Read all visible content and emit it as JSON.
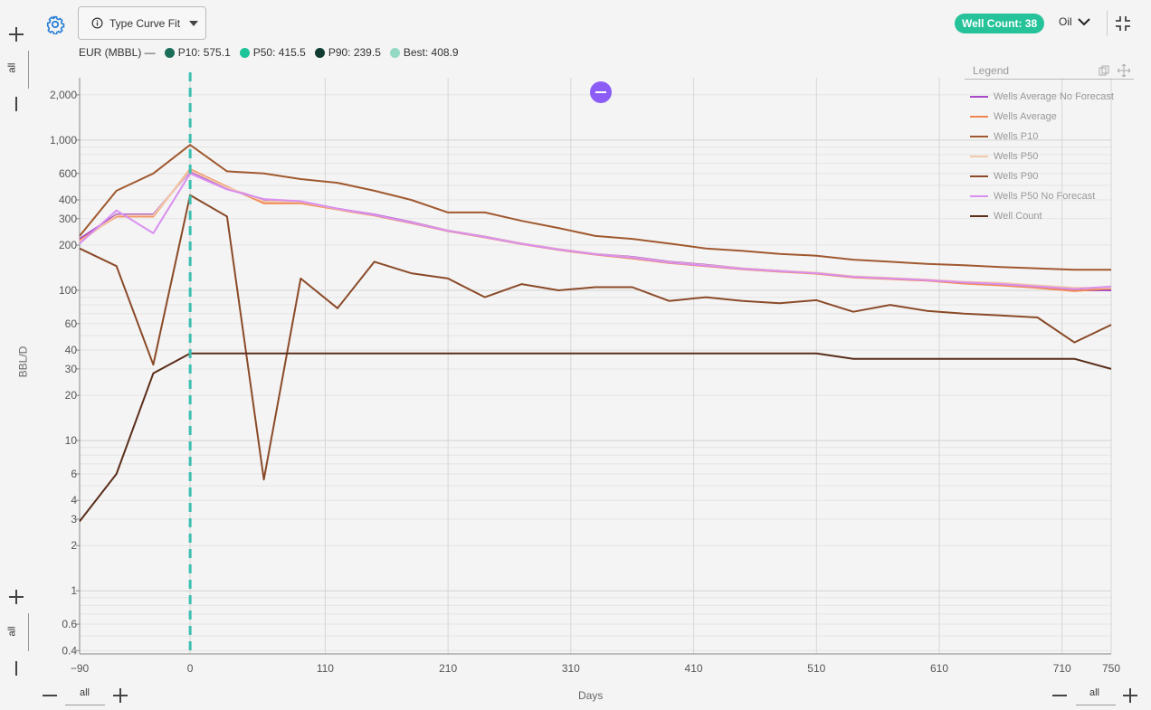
{
  "toolbar": {
    "type_curve_label": "Type Curve Fit",
    "info_icon": "info-icon",
    "settings_icon": "gear-icon",
    "well_count_label": "Well Count: 38",
    "product_label": "Oil",
    "collapse_icon": "collapse-icon"
  },
  "eur": {
    "label": "EUR (MBBL) —",
    "items": [
      {
        "label": "P10: 575.1",
        "color": "#1b6e5a"
      },
      {
        "label": "P50: 415.5",
        "color": "#1fc39a"
      },
      {
        "label": "P90: 239.5",
        "color": "#0f3b30"
      },
      {
        "label": "Best: 408.9",
        "color": "#93d9c3"
      }
    ]
  },
  "axis_controls": {
    "y_top_all": "all",
    "y_bottom_all": "all",
    "x_left_all": "all",
    "x_right_all": "all"
  },
  "chart_data": {
    "type": "line",
    "title": "",
    "xlabel": "Days",
    "ylabel": "BBL/D",
    "y_scale": "log",
    "xlim": [
      -90,
      750
    ],
    "ylim": [
      0.38,
      2600
    ],
    "x_ticks": [
      "−90",
      "0",
      "110",
      "210",
      "310",
      "410",
      "510",
      "610",
      "710",
      "750"
    ],
    "x_tick_values": [
      -90,
      0,
      110,
      210,
      310,
      410,
      510,
      610,
      710,
      750
    ],
    "y_ticks": [
      "0.4",
      "0.6",
      "1",
      "2",
      "3",
      "4",
      "6",
      "10",
      "20",
      "30",
      "40",
      "60",
      "100",
      "200",
      "300",
      "400",
      "600",
      "1,000",
      "2,000"
    ],
    "y_tick_values": [
      0.4,
      0.6,
      1,
      2,
      3,
      4,
      6,
      10,
      20,
      30,
      40,
      60,
      100,
      200,
      300,
      400,
      600,
      1000,
      2000
    ],
    "vertical_marker_x": 0,
    "legend_title": "Legend",
    "legend_position": "top-right",
    "grid": true,
    "x": [
      -90,
      -60,
      -30,
      0,
      30,
      60,
      90,
      120,
      150,
      180,
      210,
      240,
      270,
      300,
      330,
      360,
      390,
      420,
      450,
      480,
      510,
      540,
      570,
      600,
      630,
      660,
      690,
      720,
      750
    ],
    "series": [
      {
        "name": "Wells Average No Forecast",
        "color": "#a64ac9",
        "values": [
          220,
          320,
          320,
          620,
          480,
          400,
          390,
          350,
          320,
          285,
          250,
          228,
          205,
          188,
          175,
          167,
          155,
          148,
          140,
          135,
          130,
          123,
          120,
          117,
          112,
          109,
          105,
          100,
          100
        ]
      },
      {
        "name": "Wells Average",
        "color": "#f0874f",
        "values": [
          215,
          310,
          310,
          640,
          490,
          380,
          380,
          345,
          315,
          280,
          248,
          225,
          203,
          186,
          173,
          163,
          152,
          145,
          138,
          133,
          129,
          122,
          119,
          116,
          111,
          108,
          104,
          99,
          103
        ]
      },
      {
        "name": "Wells P10",
        "color": "#a0592f",
        "values": [
          230,
          460,
          600,
          930,
          620,
          600,
          550,
          520,
          460,
          400,
          330,
          330,
          290,
          260,
          230,
          220,
          205,
          190,
          183,
          175,
          170,
          160,
          155,
          150,
          147,
          143,
          140,
          137,
          137
        ]
      },
      {
        "name": "Wells P50",
        "color": "#f2c9ab",
        "values": [
          210,
          315,
          315,
          630,
          485,
          392,
          388,
          348,
          318,
          283,
          250,
          227,
          205,
          188,
          175,
          166,
          154,
          147,
          140,
          135,
          131,
          124,
          121,
          118,
          114,
          112,
          108,
          104,
          104
        ]
      },
      {
        "name": "Wells P90",
        "color": "#8a4a28",
        "values": [
          190,
          145,
          32,
          430,
          310,
          5.5,
          120,
          76,
          155,
          130,
          120,
          90,
          110,
          100,
          105,
          105,
          85,
          90,
          85,
          82,
          86,
          72,
          80,
          73,
          70,
          68,
          66,
          45,
          59
        ]
      },
      {
        "name": "Wells P50 No Forecast",
        "color": "#d98ff0",
        "values": [
          205,
          340,
          240,
          600,
          470,
          405,
          392,
          350,
          318,
          282,
          249,
          226,
          204,
          187,
          174,
          165,
          153,
          146,
          139,
          134,
          130,
          123,
          120,
          117,
          113,
          110,
          106,
          102,
          106
        ]
      },
      {
        "name": "Well Count",
        "color": "#5a2e1a",
        "values": [
          2.9,
          6,
          28,
          38,
          38,
          38,
          38,
          38,
          38,
          38,
          38,
          38,
          38,
          38,
          38,
          38,
          38,
          38,
          38,
          38,
          38,
          35,
          35,
          35,
          35,
          35,
          35,
          35,
          30
        ]
      }
    ]
  }
}
